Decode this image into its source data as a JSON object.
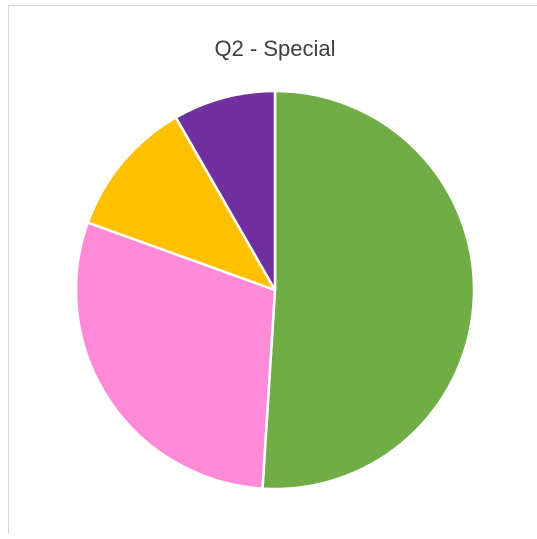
{
  "chart_data": {
    "type": "pie",
    "title": "Q2 - Special",
    "values": [
      51,
      29.5,
      11.2,
      8.3
    ],
    "colors": [
      "#70ad47",
      "#ff8ad8",
      "#ffc000",
      "#7030a0"
    ]
  }
}
